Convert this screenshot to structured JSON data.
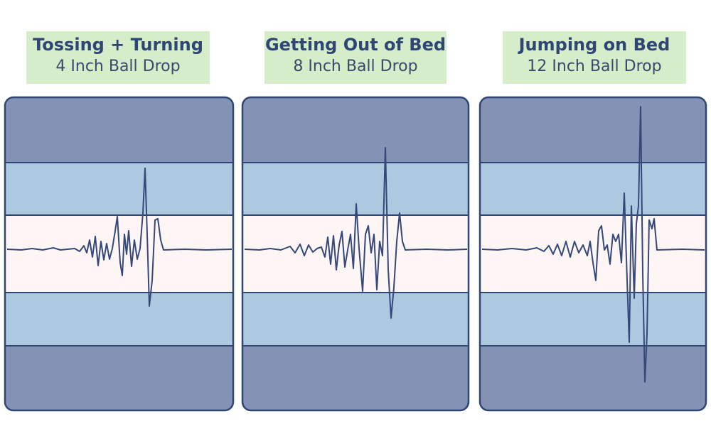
{
  "panels": [
    {
      "title": "Tossing + Turning",
      "subtitle": "4 Inch Ball Drop"
    },
    {
      "title": "Getting Out of Bed",
      "subtitle": "8 Inch Ball Drop"
    },
    {
      "title": "Jumping on Bed",
      "subtitle": "12 Inch Ball Drop"
    }
  ],
  "colors": {
    "label_bg": "#d6edc9",
    "title_text": "#2f4674",
    "outer_band": "#8492b5",
    "middle_band": "#adc9e0",
    "center_band": "#fdf6f4",
    "border": "#2f4674",
    "wave": "#34487a"
  }
}
